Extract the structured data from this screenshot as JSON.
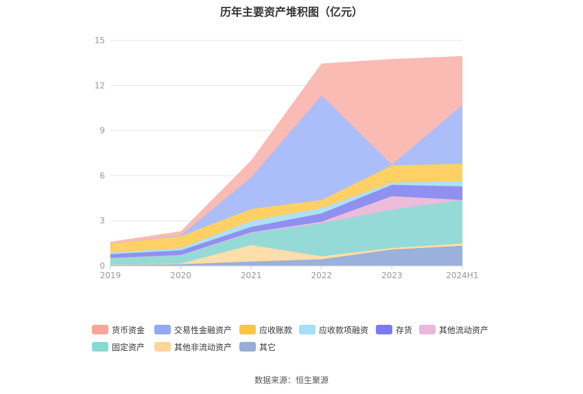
{
  "chart_data": {
    "type": "area",
    "stacked": true,
    "title": "历年主要资产堆积图（亿元）",
    "categories": [
      "2019",
      "2020",
      "2021",
      "2022",
      "2023",
      "2024H1"
    ],
    "ylim": [
      0,
      15
    ],
    "yticks": [
      0,
      3,
      6,
      9,
      12,
      15
    ],
    "grid": true,
    "legend_position": "bottom",
    "series": [
      {
        "name": "其它",
        "color": "#94ADD9",
        "values": [
          0.05,
          0.12,
          0.3,
          0.45,
          1.1,
          1.35
        ]
      },
      {
        "name": "其他非流动资产",
        "color": "#FFDCA6",
        "values": [
          0.02,
          0.05,
          1.1,
          0.2,
          0.1,
          0.15
        ]
      },
      {
        "name": "固定资产",
        "color": "#8FD8D4",
        "values": [
          0.45,
          0.55,
          0.8,
          2.2,
          2.55,
          2.9
        ]
      },
      {
        "name": "其他流动资产",
        "color": "#EAB9D9",
        "values": [
          0.02,
          0.02,
          0.05,
          0.1,
          0.9,
          0.0
        ]
      },
      {
        "name": "存货",
        "color": "#8A8AF0",
        "values": [
          0.25,
          0.3,
          0.35,
          0.55,
          0.75,
          0.9
        ]
      },
      {
        "name": "应收款项融资",
        "color": "#A9DFF5",
        "values": [
          0.1,
          0.15,
          0.4,
          0.35,
          0.15,
          0.35
        ]
      },
      {
        "name": "应收账款",
        "color": "#FFCD5E",
        "values": [
          0.6,
          0.8,
          0.8,
          0.55,
          1.15,
          1.15
        ]
      },
      {
        "name": "交易性金融资产",
        "color": "#A6BAF9",
        "values": [
          0.0,
          0.05,
          2.1,
          6.95,
          0.05,
          3.9
        ]
      },
      {
        "name": "货币资金",
        "color": "#FAB7B0",
        "values": [
          0.1,
          0.25,
          1.1,
          2.1,
          7.0,
          3.25
        ]
      }
    ]
  },
  "legend": [
    {
      "label": "货币资金",
      "color": "#FAA59C"
    },
    {
      "label": "交易性金融资产",
      "color": "#94A8F5"
    },
    {
      "label": "应收账款",
      "color": "#FFC53D"
    },
    {
      "label": "应收款项融资",
      "color": "#A6DDF7"
    },
    {
      "label": "存货",
      "color": "#7B7BEE"
    },
    {
      "label": "其他流动资产",
      "color": "#EBB7DB"
    },
    {
      "label": "固定资产",
      "color": "#86D9D4"
    },
    {
      "label": "其他非流动资产",
      "color": "#FFD69A"
    },
    {
      "label": "其它",
      "color": "#94ADD9"
    }
  ],
  "footer": {
    "source": "数据来源：恒生聚源"
  }
}
